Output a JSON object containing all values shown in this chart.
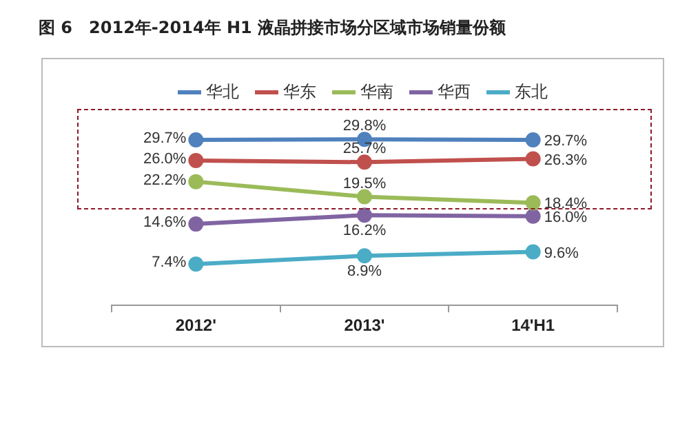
{
  "chart_data": {
    "type": "line",
    "title": "图 6　2012年-2014年 H1 液晶拼接市场分区域市场销量份额",
    "categories": [
      "2012'",
      "2013'",
      "14'H1"
    ],
    "legend": "top",
    "marker": "circle",
    "grid": false,
    "series": [
      {
        "name": "华北",
        "color": "#4f81bd",
        "values": [
          29.7,
          29.8,
          29.7
        ],
        "value_labels": [
          "29.7%",
          "29.8%",
          "29.7%"
        ]
      },
      {
        "name": "华东",
        "color": "#c0504d",
        "values": [
          26.0,
          25.7,
          26.3
        ],
        "value_labels": [
          "26.0%",
          "25.7%",
          "26.3%"
        ]
      },
      {
        "name": "华南",
        "color": "#9bbb59",
        "values": [
          22.2,
          19.5,
          18.4
        ],
        "value_labels": [
          "22.2%",
          "19.5%",
          "18.4%"
        ]
      },
      {
        "name": "华西",
        "color": "#8064a2",
        "values": [
          14.6,
          16.2,
          16.0
        ],
        "value_labels": [
          "14.6%",
          "16.2%",
          "16.0%"
        ]
      },
      {
        "name": "东北",
        "color": "#4bacc6",
        "values": [
          7.4,
          8.9,
          9.6
        ],
        "value_labels": [
          "7.4%",
          "8.9%",
          "9.6%"
        ]
      }
    ]
  }
}
